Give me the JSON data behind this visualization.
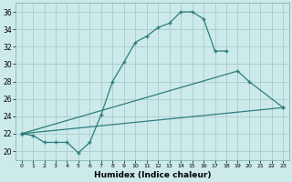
{
  "xlabel": "Humidex (Indice chaleur)",
  "bg_color": "#cceaea",
  "grid_color": "#aacccc",
  "line_color": "#2e7d7d",
  "xlim": [
    -0.5,
    23.5
  ],
  "ylim": [
    19,
    37
  ],
  "yticks": [
    20,
    22,
    24,
    26,
    28,
    30,
    32,
    34,
    36
  ],
  "xticks": [
    0,
    1,
    2,
    3,
    4,
    5,
    6,
    7,
    8,
    9,
    10,
    11,
    12,
    13,
    14,
    15,
    16,
    17,
    18,
    19,
    20,
    21,
    22,
    23
  ],
  "curve1_x": [
    0,
    1,
    2,
    3,
    4,
    5,
    6,
    7,
    8,
    9,
    10,
    11,
    12,
    13,
    14,
    15,
    16,
    17,
    18
  ],
  "curve1_y": [
    22,
    21.8,
    21.0,
    21.0,
    21.0,
    19.8,
    21.0,
    24.2,
    28.0,
    30.2,
    32.5,
    33.2,
    34.2,
    34.7,
    36.0,
    36.0,
    35.2,
    31.5,
    31.5
  ],
  "curve2_x": [
    0,
    19,
    20,
    23
  ],
  "curve2_y": [
    22,
    29.2,
    28.0,
    25.0
  ],
  "curve3_x": [
    0,
    23
  ],
  "curve3_y": [
    22,
    25.0
  ]
}
